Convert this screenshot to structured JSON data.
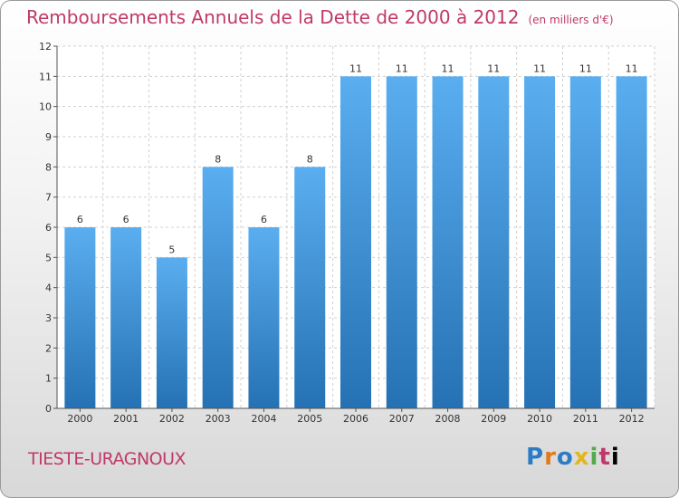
{
  "header": {
    "title": "Remboursements Annuels de la Dette de 2000 à 2012",
    "subtitle": "(en milliers d'€)"
  },
  "footer": {
    "commune": "TIESTE-URAGNOUX",
    "logo_letters": [
      "P",
      "r",
      "o",
      "x",
      "i",
      "t",
      "i"
    ]
  },
  "colors": {
    "title": "#c0396a",
    "bar_top": "#5aaef0",
    "bar_bottom": "#2571b3"
  },
  "chart_data": {
    "type": "bar",
    "title": "Remboursements Annuels de la Dette de 2000 à 2012",
    "xlabel": "",
    "ylabel": "",
    "categories": [
      "2000",
      "2001",
      "2002",
      "2003",
      "2004",
      "2005",
      "2006",
      "2007",
      "2008",
      "2009",
      "2010",
      "2011",
      "2012"
    ],
    "values": [
      6,
      6,
      5,
      8,
      6,
      8,
      11,
      11,
      11,
      11,
      11,
      11,
      11
    ],
    "value_labels": [
      "6",
      "6",
      "5",
      "8",
      "6",
      "8",
      "11",
      "11",
      "11",
      "11",
      "11",
      "11",
      "11"
    ],
    "ylim": [
      0,
      12
    ],
    "yticks": [
      "0",
      "1",
      "2",
      "3",
      "4",
      "5",
      "6",
      "7",
      "8",
      "9",
      "10",
      "11",
      "12"
    ],
    "grid": true
  }
}
